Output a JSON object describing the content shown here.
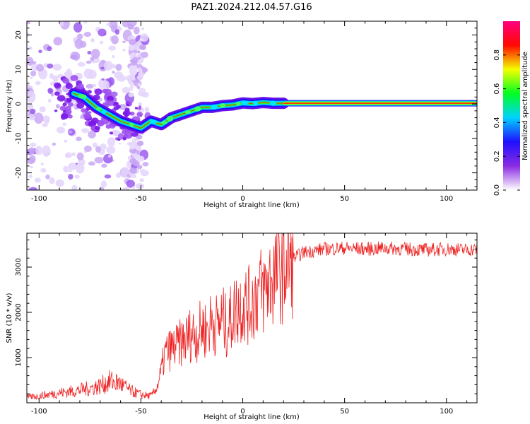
{
  "title": "PAZ1.2024.212.04.57.G16",
  "chart_data": [
    {
      "type": "heatmap",
      "title": "PAZ1.2024.212.04.57.G16",
      "xlabel": "Height of straight line (km)",
      "ylabel": "Frequency (Hz)",
      "xlim": [
        -106,
        115
      ],
      "ylim": [
        -25,
        24
      ],
      "x_ticks": [
        -100,
        -50,
        0,
        50,
        100
      ],
      "x_tick_labels": [
        "-100",
        "-50",
        "0",
        "50",
        "100"
      ],
      "y_ticks": [
        -20,
        -10,
        0,
        10,
        20
      ],
      "y_tick_labels": [
        "-20",
        "-10",
        "0",
        "10",
        "20"
      ],
      "colorbar": {
        "label": "Normalized spectral amplitude",
        "range": [
          0,
          1
        ],
        "ticks": [
          0.0,
          0.2,
          0.4,
          0.6,
          0.8
        ],
        "tick_labels": [
          "0.0",
          "0.2",
          "0.4",
          "0.6",
          "0.8"
        ],
        "colors": [
          "#ffffff",
          "#8a2be2",
          "#1f10ff",
          "#00d2ff",
          "#00ff22",
          "#f4ff00",
          "#ff0a00",
          "#ff0080"
        ]
      },
      "ridge": {
        "x": [
          -83,
          -78,
          -72,
          -66,
          -60,
          -55,
          -50,
          -45,
          -40,
          -35,
          -30,
          -25,
          -20,
          -15,
          -10,
          -5,
          0,
          5,
          10,
          15,
          20
        ],
        "y": [
          3,
          2,
          -1,
          -3,
          -5,
          -6,
          -7,
          -5,
          -6,
          -4,
          -3,
          -2,
          -1,
          -1,
          -0.5,
          -0.3,
          0.3,
          0.1,
          0.4,
          0.2,
          0.2
        ]
      },
      "tone_line": {
        "x": [
          20,
          115
        ],
        "y": 0.2
      },
      "grid": false
    },
    {
      "type": "line",
      "xlabel": "Height of straight line (km)",
      "ylabel": "SNR (10 * v/v)",
      "xlim": [
        -106,
        115
      ],
      "ylim": [
        0,
        3750
      ],
      "x_ticks": [
        -100,
        -50,
        0,
        50,
        100
      ],
      "x_tick_labels": [
        "-100",
        "-50",
        "0",
        "50",
        "100"
      ],
      "y_ticks": [
        1000,
        2000,
        3000
      ],
      "y_tick_labels": [
        "1000",
        "2000",
        "3000"
      ],
      "series": [
        {
          "color": "#ee2222",
          "x": [
            -106,
            -100,
            -90,
            -80,
            -70,
            -65,
            -60,
            -55,
            -50,
            -45,
            -42,
            -40,
            -38,
            -35,
            -32,
            -30,
            -28,
            -25,
            -22,
            -20,
            -18,
            -15,
            -12,
            -10,
            -8,
            -5,
            -3,
            0,
            3,
            5,
            8,
            10,
            12,
            15,
            20,
            25,
            30,
            40,
            50,
            60,
            70,
            80,
            90,
            100,
            110,
            115
          ],
          "y": [
            120,
            150,
            220,
            280,
            370,
            480,
            420,
            260,
            180,
            150,
            350,
            700,
            1100,
            1200,
            1250,
            1350,
            1400,
            1550,
            1500,
            1700,
            1600,
            1800,
            1700,
            1900,
            1650,
            1950,
            2100,
            2200,
            2150,
            2250,
            2500,
            2450,
            2600,
            2800,
            3000,
            3200,
            3330,
            3400,
            3420,
            3400,
            3420,
            3400,
            3380,
            3400,
            3380,
            3400
          ]
        }
      ],
      "grid": false
    }
  ]
}
